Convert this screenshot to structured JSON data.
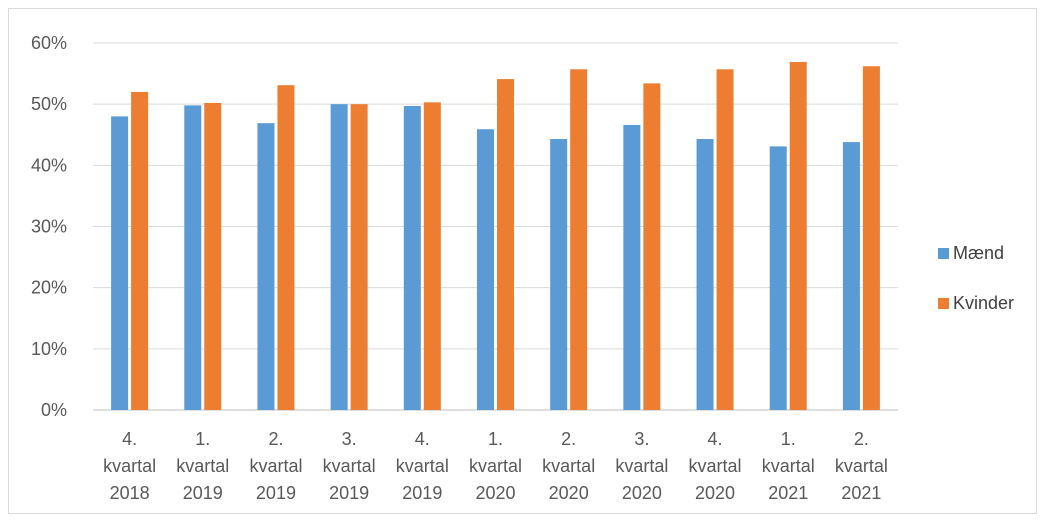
{
  "chart_data": {
    "type": "bar",
    "categories": [
      [
        "4.",
        "kvartal",
        "2018"
      ],
      [
        "1.",
        "kvartal",
        "2019"
      ],
      [
        "2.",
        "kvartal",
        "2019"
      ],
      [
        "3.",
        "kvartal",
        "2019"
      ],
      [
        "4.",
        "kvartal",
        "2019"
      ],
      [
        "1.",
        "kvartal",
        "2020"
      ],
      [
        "2.",
        "kvartal",
        "2020"
      ],
      [
        "3.",
        "kvartal",
        "2020"
      ],
      [
        "4.",
        "kvartal",
        "2020"
      ],
      [
        "1.",
        "kvartal",
        "2021"
      ],
      [
        "2.",
        "kvartal",
        "2021"
      ]
    ],
    "series": [
      {
        "name": "Mænd",
        "color": "#5b9bd5",
        "values": [
          0.48,
          0.498,
          0.469,
          0.5,
          0.497,
          0.459,
          0.443,
          0.466,
          0.443,
          0.431,
          0.438
        ]
      },
      {
        "name": "Kvinder",
        "color": "#ed7d31",
        "values": [
          0.52,
          0.502,
          0.531,
          0.5,
          0.503,
          0.541,
          0.557,
          0.534,
          0.557,
          0.569,
          0.562
        ]
      }
    ],
    "ylim": [
      0,
      0.6
    ],
    "yticks": [
      "0%",
      "10%",
      "20%",
      "30%",
      "40%",
      "50%",
      "60%"
    ],
    "grid": true,
    "legend": "right",
    "title": "",
    "xlabel": "",
    "ylabel": ""
  }
}
